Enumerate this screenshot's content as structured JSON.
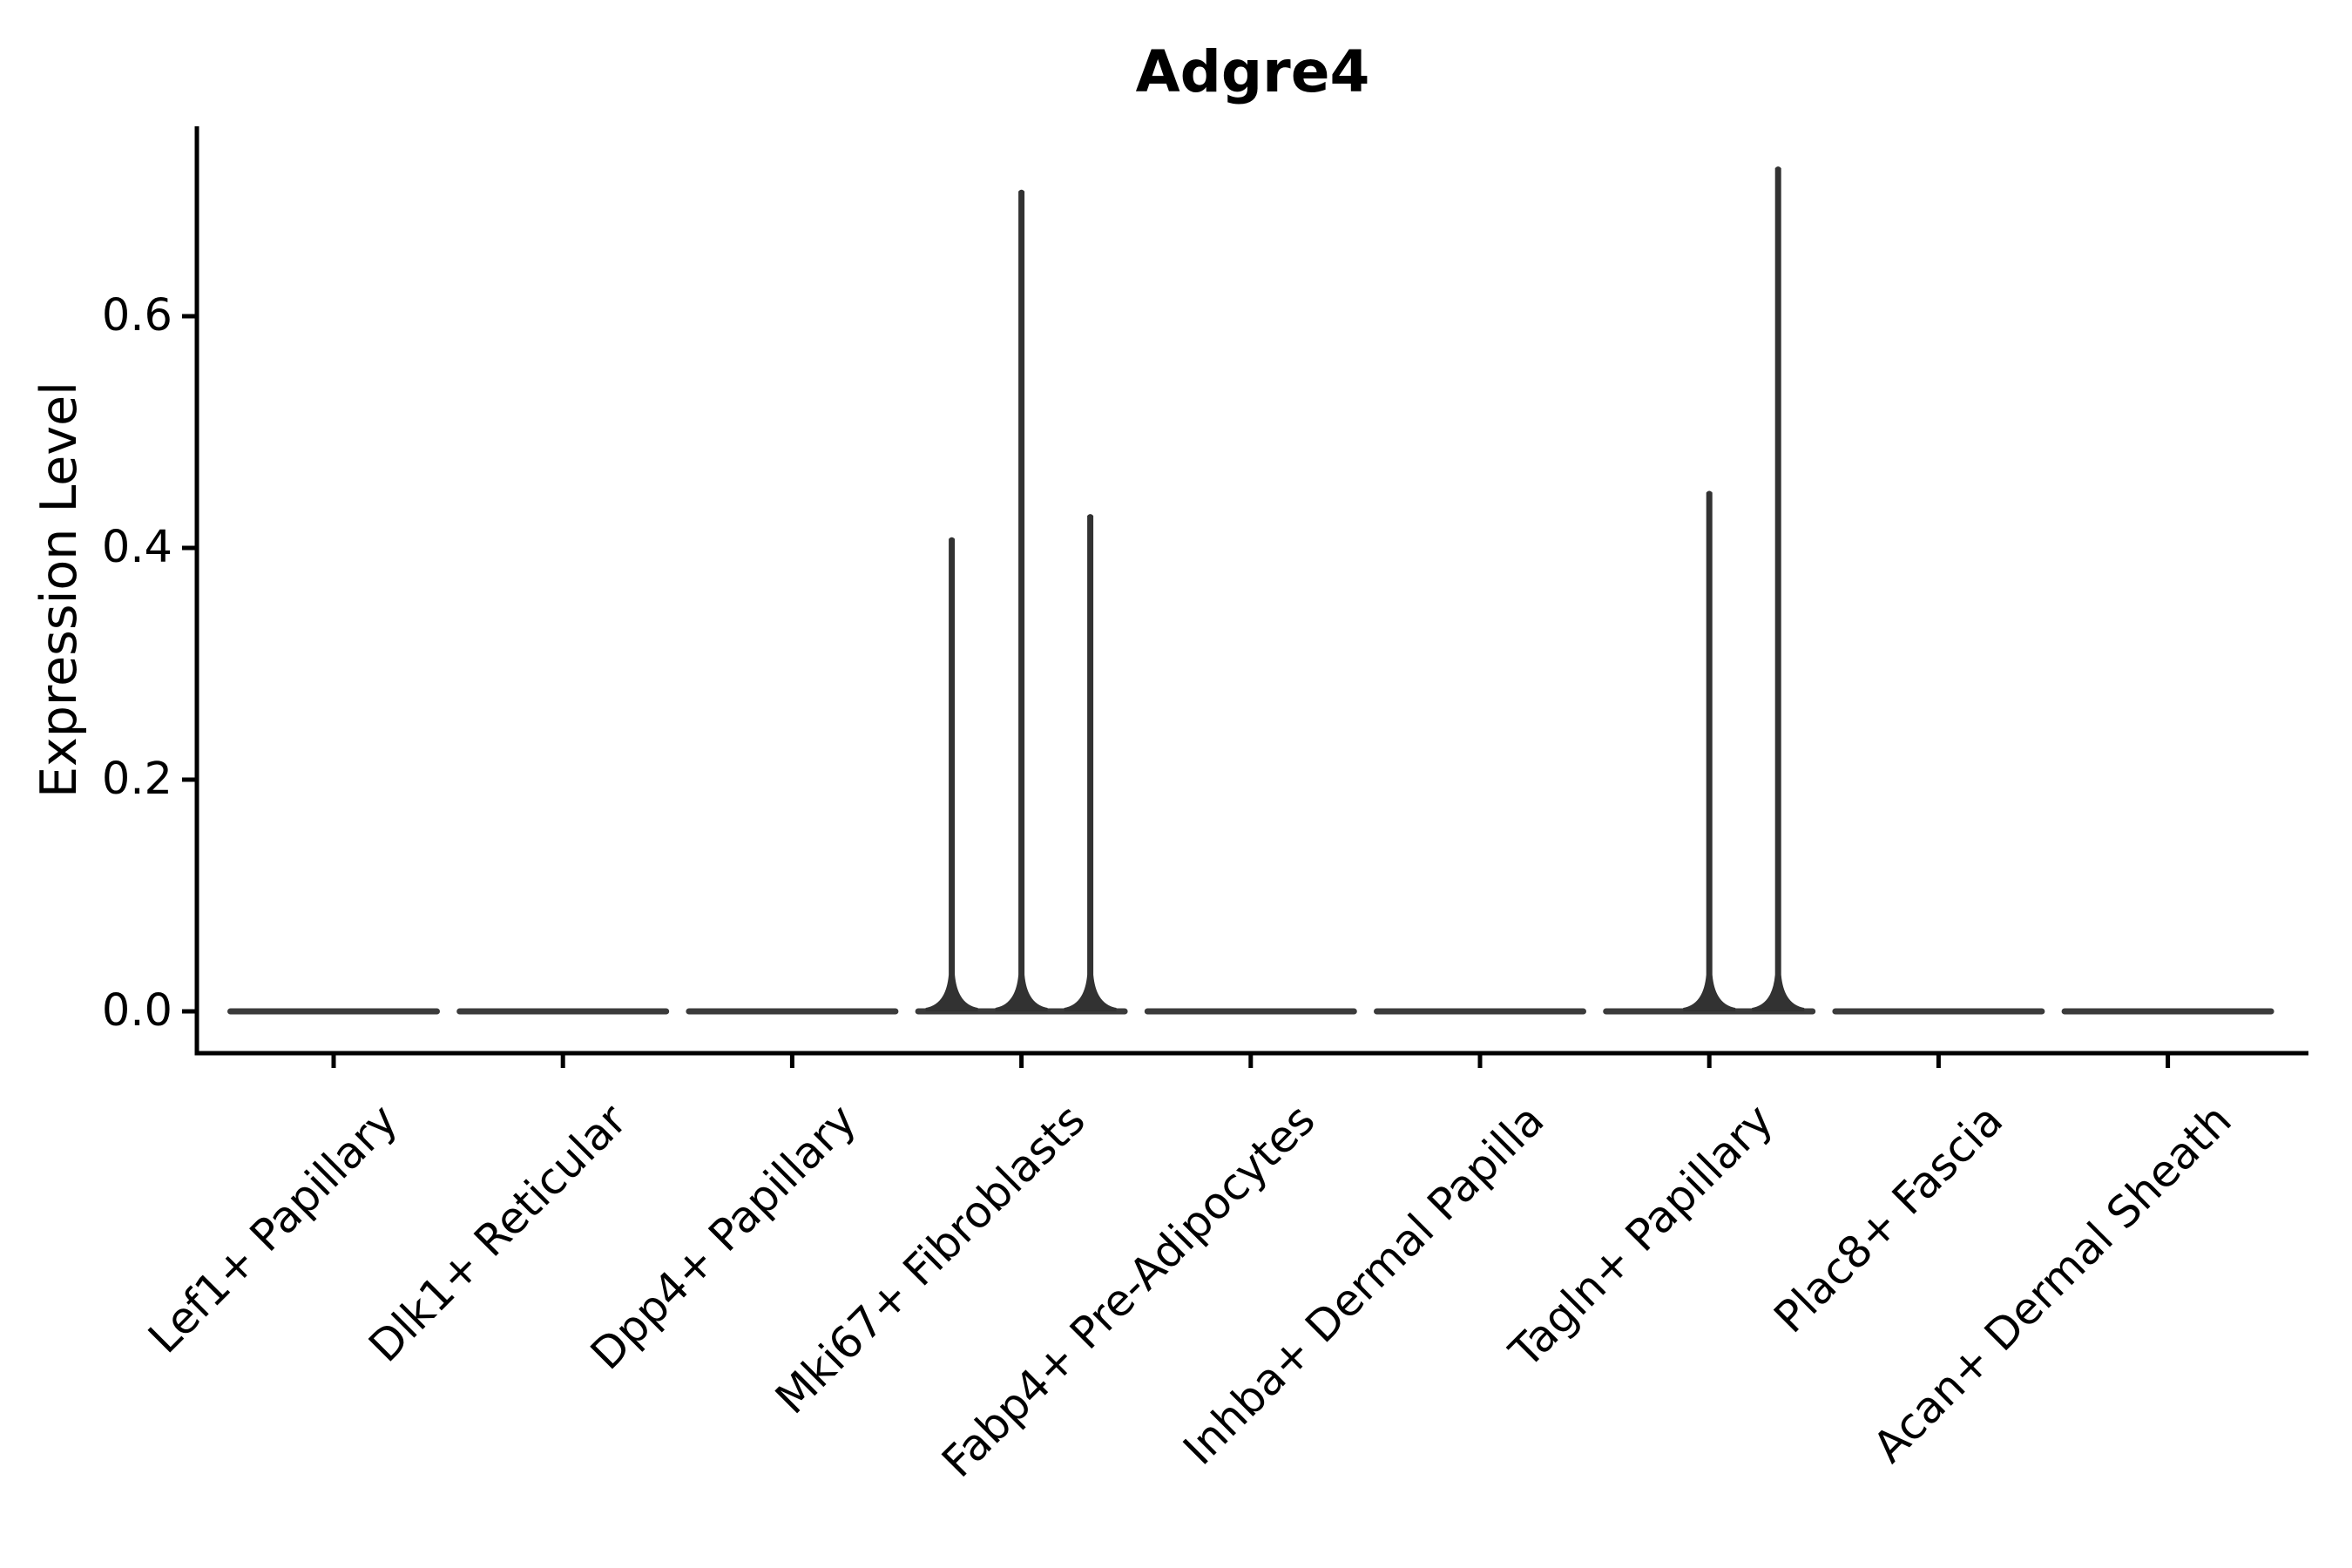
{
  "title": "Adgre4",
  "y_axis": {
    "label": "Expression Level",
    "ticks": [
      "0.0",
      "0.2",
      "0.4",
      "0.6"
    ],
    "tick_values": [
      0.0,
      0.2,
      0.4,
      0.6
    ]
  },
  "colors": {
    "ink": "#000000",
    "violin": "#3b3b3b",
    "spike": "#323232"
  },
  "chart_data": {
    "type": "violin",
    "title": "Adgre4",
    "xlabel": "",
    "ylabel": "Expression Level",
    "ylim": [
      -0.04,
      0.765
    ],
    "y_ticks": [
      0.0,
      0.2,
      0.4,
      0.6
    ],
    "grid": false,
    "legend": null,
    "categories": [
      "Lef1+ Papillary",
      "Dlk1+ Reticular",
      "Dpp4+ Papillary",
      "Mki67+ Fibroblasts",
      "Fabp4+ Pre-Adipocytes",
      "Inhba+ Dermal Papilla",
      "Tagln+ Papillary",
      "Plac8+ Fascia",
      "Acan+ Dermal Sheath"
    ],
    "violins": [
      {
        "category": "Lef1+ Papillary",
        "body_value": 0.0,
        "spikes": []
      },
      {
        "category": "Dlk1+ Reticular",
        "body_value": 0.0,
        "spikes": []
      },
      {
        "category": "Dpp4+ Papillary",
        "body_value": 0.0,
        "spikes": []
      },
      {
        "category": "Mki67+ Fibroblasts",
        "body_value": 0.0,
        "spikes": [
          {
            "dx": -80,
            "value": 0.41
          },
          {
            "dx": 0,
            "value": 0.71
          },
          {
            "dx": 79,
            "value": 0.43
          }
        ]
      },
      {
        "category": "Fabp4+ Pre-Adipocytes",
        "body_value": 0.0,
        "spikes": []
      },
      {
        "category": "Inhba+ Dermal Papilla",
        "body_value": 0.0,
        "spikes": []
      },
      {
        "category": "Tagln+ Papillary",
        "body_value": 0.0,
        "spikes": [
          {
            "dx": 0,
            "value": 0.45
          },
          {
            "dx": 79,
            "value": 0.73
          }
        ]
      },
      {
        "category": "Plac8+ Fascia",
        "body_value": 0.0,
        "spikes": []
      },
      {
        "category": "Acan+ Dermal Sheath",
        "body_value": 0.0,
        "spikes": []
      }
    ]
  }
}
